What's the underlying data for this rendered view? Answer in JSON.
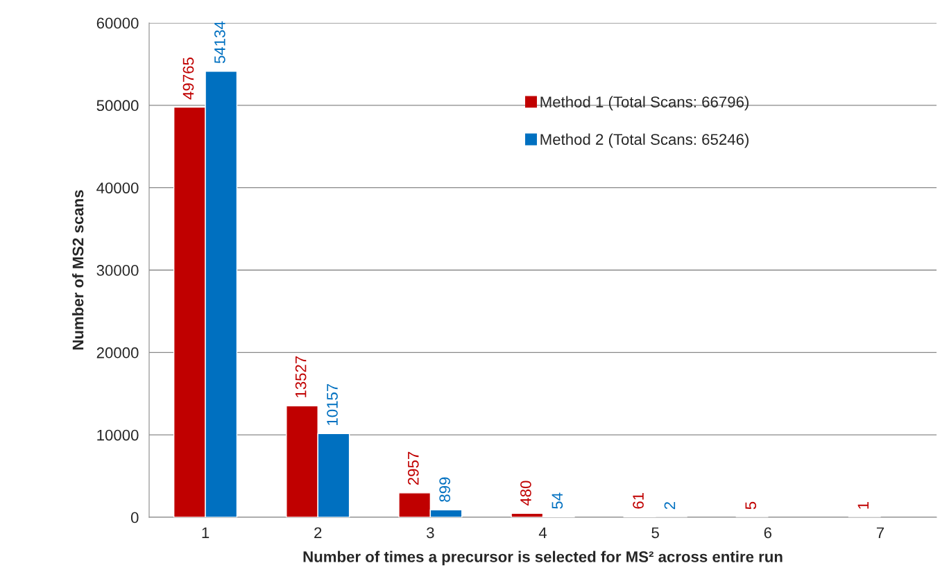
{
  "chart_data": {
    "type": "bar",
    "xlabel": "Number of times a precursor is selected for MS² across entire run",
    "ylabel": "Number of MS2 scans",
    "categories": [
      "1",
      "2",
      "3",
      "4",
      "5",
      "6",
      "7"
    ],
    "series": [
      {
        "name": "Method 1 (Total Scans: 66796)",
        "color": "#c00000",
        "values": [
          49765,
          13527,
          2957,
          480,
          61,
          5,
          1
        ]
      },
      {
        "name": "Method 2 (Total Scans: 65246)",
        "color": "#0070c0",
        "values": [
          54134,
          10157,
          899,
          54,
          2,
          null,
          null
        ]
      }
    ],
    "ylim": [
      0,
      60000
    ],
    "yticks": [
      0,
      10000,
      20000,
      30000,
      40000,
      50000,
      60000
    ],
    "grid": "y",
    "legend": "top right",
    "data_labels": true
  }
}
